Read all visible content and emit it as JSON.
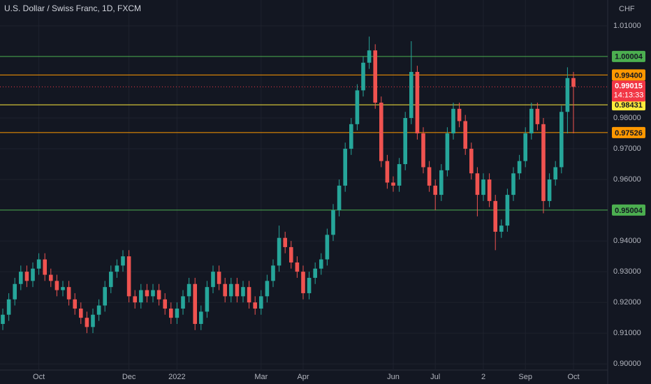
{
  "chart_data": {
    "type": "candlestick",
    "title": "U.S. Dollar / Swiss Franc, 1D, FXCM",
    "currency": "CHF",
    "categories": [
      null,
      null,
      null,
      null,
      null,
      null,
      "Oct",
      null,
      null,
      null,
      null,
      null,
      null,
      null,
      null,
      null,
      null,
      null,
      null,
      null,
      null,
      "Dec",
      null,
      null,
      null,
      null,
      null,
      null,
      null,
      "2022",
      null,
      null,
      null,
      null,
      null,
      null,
      null,
      null,
      null,
      null,
      null,
      null,
      null,
      "Mar",
      null,
      null,
      null,
      null,
      null,
      null,
      "Apr",
      null,
      null,
      null,
      null,
      null,
      null,
      null,
      null,
      null,
      null,
      null,
      null,
      null,
      null,
      "Jun",
      null,
      null,
      null,
      null,
      null,
      null,
      "Jul",
      null,
      null,
      null,
      null,
      null,
      null,
      null,
      "2",
      null,
      null,
      null,
      null,
      null,
      null,
      "Sep",
      null,
      null,
      null,
      null,
      null,
      null,
      null,
      "Oct"
    ],
    "open": [
      0.913,
      0.916,
      0.921,
      0.926,
      0.93,
      0.927,
      0.931,
      0.934,
      0.929,
      0.927,
      0.924,
      0.925,
      0.921,
      0.918,
      0.915,
      0.912,
      0.916,
      0.919,
      0.925,
      0.93,
      0.932,
      0.935,
      0.922,
      0.92,
      0.924,
      0.922,
      0.924,
      0.921,
      0.918,
      0.915,
      0.918,
      0.922,
      0.926,
      0.913,
      0.917,
      0.925,
      0.93,
      0.926,
      0.922,
      0.926,
      0.922,
      0.925,
      0.92,
      0.918,
      0.922,
      0.927,
      0.932,
      0.941,
      0.938,
      0.933,
      0.93,
      0.923,
      0.928,
      0.931,
      0.934,
      0.942,
      0.95,
      0.958,
      0.97,
      0.978,
      0.989,
      0.998,
      1.002,
      0.985,
      0.966,
      0.959,
      0.958,
      0.965,
      0.98,
      0.995,
      0.975,
      0.964,
      0.958,
      0.955,
      0.963,
      0.975,
      0.983,
      0.979,
      0.97,
      0.962,
      0.955,
      0.96,
      0.953,
      0.943,
      0.945,
      0.955,
      0.962,
      0.966,
      0.975,
      0.983,
      0.978,
      0.953,
      0.96,
      0.964,
      0.982,
      0.993
    ],
    "high": [
      0.918,
      0.923,
      0.928,
      0.932,
      0.932,
      0.933,
      0.936,
      0.936,
      0.931,
      0.929,
      0.927,
      0.927,
      0.923,
      0.92,
      0.917,
      0.918,
      0.921,
      0.927,
      0.932,
      0.934,
      0.937,
      0.937,
      0.924,
      0.926,
      0.926,
      0.926,
      0.926,
      0.923,
      0.92,
      0.92,
      0.924,
      0.928,
      0.928,
      0.919,
      0.927,
      0.932,
      0.932,
      0.928,
      0.928,
      0.928,
      0.927,
      0.927,
      0.922,
      0.924,
      0.929,
      0.934,
      0.945,
      0.943,
      0.94,
      0.935,
      0.932,
      0.93,
      0.933,
      0.936,
      0.944,
      0.952,
      0.96,
      0.972,
      0.98,
      0.991,
      1.0,
      1.0065,
      1.004,
      0.987,
      0.968,
      0.961,
      0.967,
      0.982,
      1.005,
      0.997,
      0.977,
      0.966,
      0.96,
      0.965,
      0.977,
      0.985,
      0.985,
      0.981,
      0.972,
      0.964,
      0.962,
      0.962,
      0.955,
      0.947,
      0.957,
      0.964,
      0.968,
      0.977,
      0.985,
      0.985,
      0.98,
      0.962,
      0.966,
      0.984,
      0.9965,
      0.995
    ],
    "low": [
      0.911,
      0.914,
      0.919,
      0.924,
      0.925,
      0.925,
      0.929,
      0.927,
      0.925,
      0.922,
      0.922,
      0.919,
      0.916,
      0.913,
      0.91,
      0.91,
      0.914,
      0.917,
      0.923,
      0.928,
      0.93,
      0.92,
      0.918,
      0.918,
      0.92,
      0.92,
      0.919,
      0.916,
      0.913,
      0.913,
      0.916,
      0.92,
      0.911,
      0.911,
      0.915,
      0.923,
      0.924,
      0.92,
      0.92,
      0.92,
      0.92,
      0.918,
      0.916,
      0.916,
      0.92,
      0.925,
      0.93,
      0.936,
      0.931,
      0.928,
      0.921,
      0.921,
      0.926,
      0.929,
      0.932,
      0.94,
      0.948,
      0.956,
      0.968,
      0.976,
      0.987,
      0.996,
      0.983,
      0.964,
      0.957,
      0.956,
      0.956,
      0.963,
      0.978,
      0.973,
      0.962,
      0.956,
      0.95,
      0.953,
      0.961,
      0.973,
      0.977,
      0.968,
      0.96,
      0.948,
      0.953,
      0.951,
      0.937,
      0.941,
      0.943,
      0.953,
      0.96,
      0.964,
      0.973,
      0.976,
      0.949,
      0.951,
      0.958,
      0.962,
      0.975,
      0.975
    ],
    "close": [
      0.916,
      0.921,
      0.926,
      0.93,
      0.927,
      0.931,
      0.934,
      0.929,
      0.927,
      0.924,
      0.925,
      0.921,
      0.918,
      0.915,
      0.912,
      0.916,
      0.919,
      0.925,
      0.93,
      0.932,
      0.935,
      0.922,
      0.92,
      0.924,
      0.922,
      0.924,
      0.921,
      0.918,
      0.915,
      0.918,
      0.922,
      0.926,
      0.913,
      0.917,
      0.925,
      0.93,
      0.926,
      0.922,
      0.926,
      0.922,
      0.925,
      0.92,
      0.918,
      0.922,
      0.927,
      0.932,
      0.941,
      0.938,
      0.933,
      0.93,
      0.923,
      0.928,
      0.931,
      0.934,
      0.942,
      0.95,
      0.958,
      0.97,
      0.978,
      0.989,
      0.998,
      1.002,
      0.985,
      0.966,
      0.959,
      0.958,
      0.965,
      0.98,
      0.995,
      0.975,
      0.964,
      0.958,
      0.955,
      0.963,
      0.975,
      0.983,
      0.979,
      0.97,
      0.962,
      0.955,
      0.96,
      0.953,
      0.943,
      0.945,
      0.955,
      0.962,
      0.966,
      0.975,
      0.983,
      0.978,
      0.953,
      0.96,
      0.964,
      0.982,
      0.993,
      0.99015
    ],
    "up_color": "#26a69a",
    "down_color": "#ef5350",
    "ylim": [
      0.898,
      1.0184
    ],
    "yticks": [
      {
        "value": 1.01,
        "label": "1.01000"
      },
      {
        "value": 0.98,
        "label": "0.98000"
      },
      {
        "value": 0.97,
        "label": "0.97000"
      },
      {
        "value": 0.96,
        "label": "0.96000"
      },
      {
        "value": 0.94,
        "label": "0.94000"
      },
      {
        "value": 0.93,
        "label": "0.93000"
      },
      {
        "value": 0.92,
        "label": "0.92000"
      },
      {
        "value": 0.91,
        "label": "0.91000"
      },
      {
        "value": 0.9,
        "label": "0.90000"
      }
    ],
    "grid": true,
    "levels": [
      {
        "value": 1.00004,
        "label": "1.00004",
        "color": "#4caf50"
      },
      {
        "value": 0.994,
        "label": "0.99400",
        "color": "#ff9800"
      },
      {
        "value": 0.98431,
        "label": "0.98431",
        "color": "#ffeb3b"
      },
      {
        "value": 0.97526,
        "label": "0.97526",
        "color": "#ff9800"
      },
      {
        "value": 0.95004,
        "label": "0.95004",
        "color": "#4caf50"
      }
    ],
    "last": {
      "value": 0.99015,
      "countdown": "14:13:33",
      "color": "#f23645"
    }
  }
}
